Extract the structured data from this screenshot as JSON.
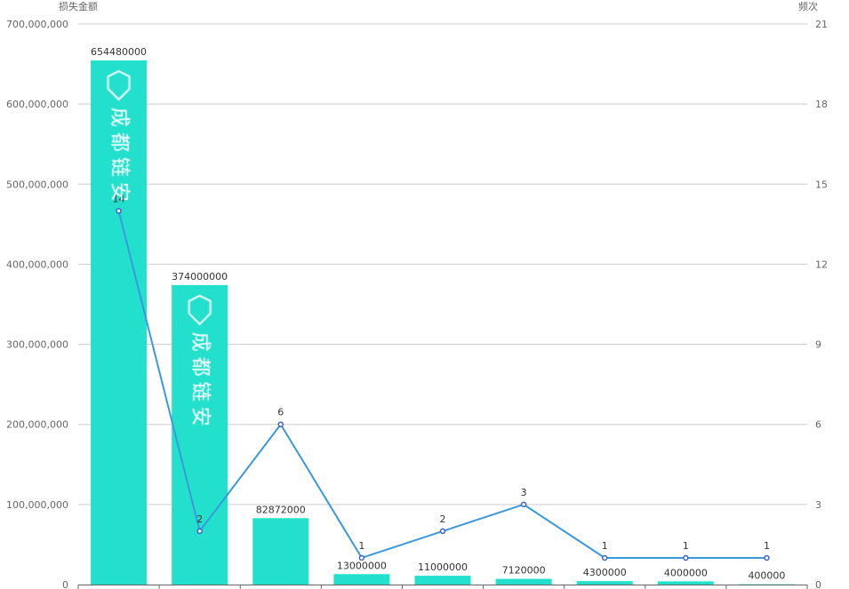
{
  "chart_data": {
    "type": "bar+line",
    "left_axis_name": "损失金额",
    "right_axis_name": "频次",
    "left_ylim": [
      0,
      700000000
    ],
    "left_ticks": [
      "0",
      "100,000,000",
      "200,000,000",
      "300,000,000",
      "400,000,000",
      "500,000,000",
      "600,000,000",
      "700,000,000"
    ],
    "right_ylim": [
      0,
      21
    ],
    "right_ticks": [
      "0",
      "3",
      "6",
      "9",
      "12",
      "15",
      "18",
      "21"
    ],
    "grid": true,
    "series": [
      {
        "name": "损失金额",
        "type": "bar",
        "axis": "left",
        "color": "#22e0cc",
        "values": [
          654480000,
          374000000,
          82872000,
          13000000,
          11000000,
          7120000,
          4300000,
          4000000,
          400000
        ],
        "labels": [
          "654480000",
          "374000000",
          "82872000",
          "13000000",
          "11000000",
          "7120000",
          "4300000",
          "4000000",
          "400000"
        ]
      },
      {
        "name": "频次",
        "type": "line",
        "axis": "right",
        "color": "#3a9ad9",
        "values": [
          14,
          2,
          6,
          1,
          2,
          3,
          1,
          1,
          1
        ],
        "labels": [
          "14",
          "2",
          "6",
          "1",
          "2",
          "3",
          "1",
          "1",
          "1"
        ]
      }
    ],
    "watermark": "成都链安"
  }
}
